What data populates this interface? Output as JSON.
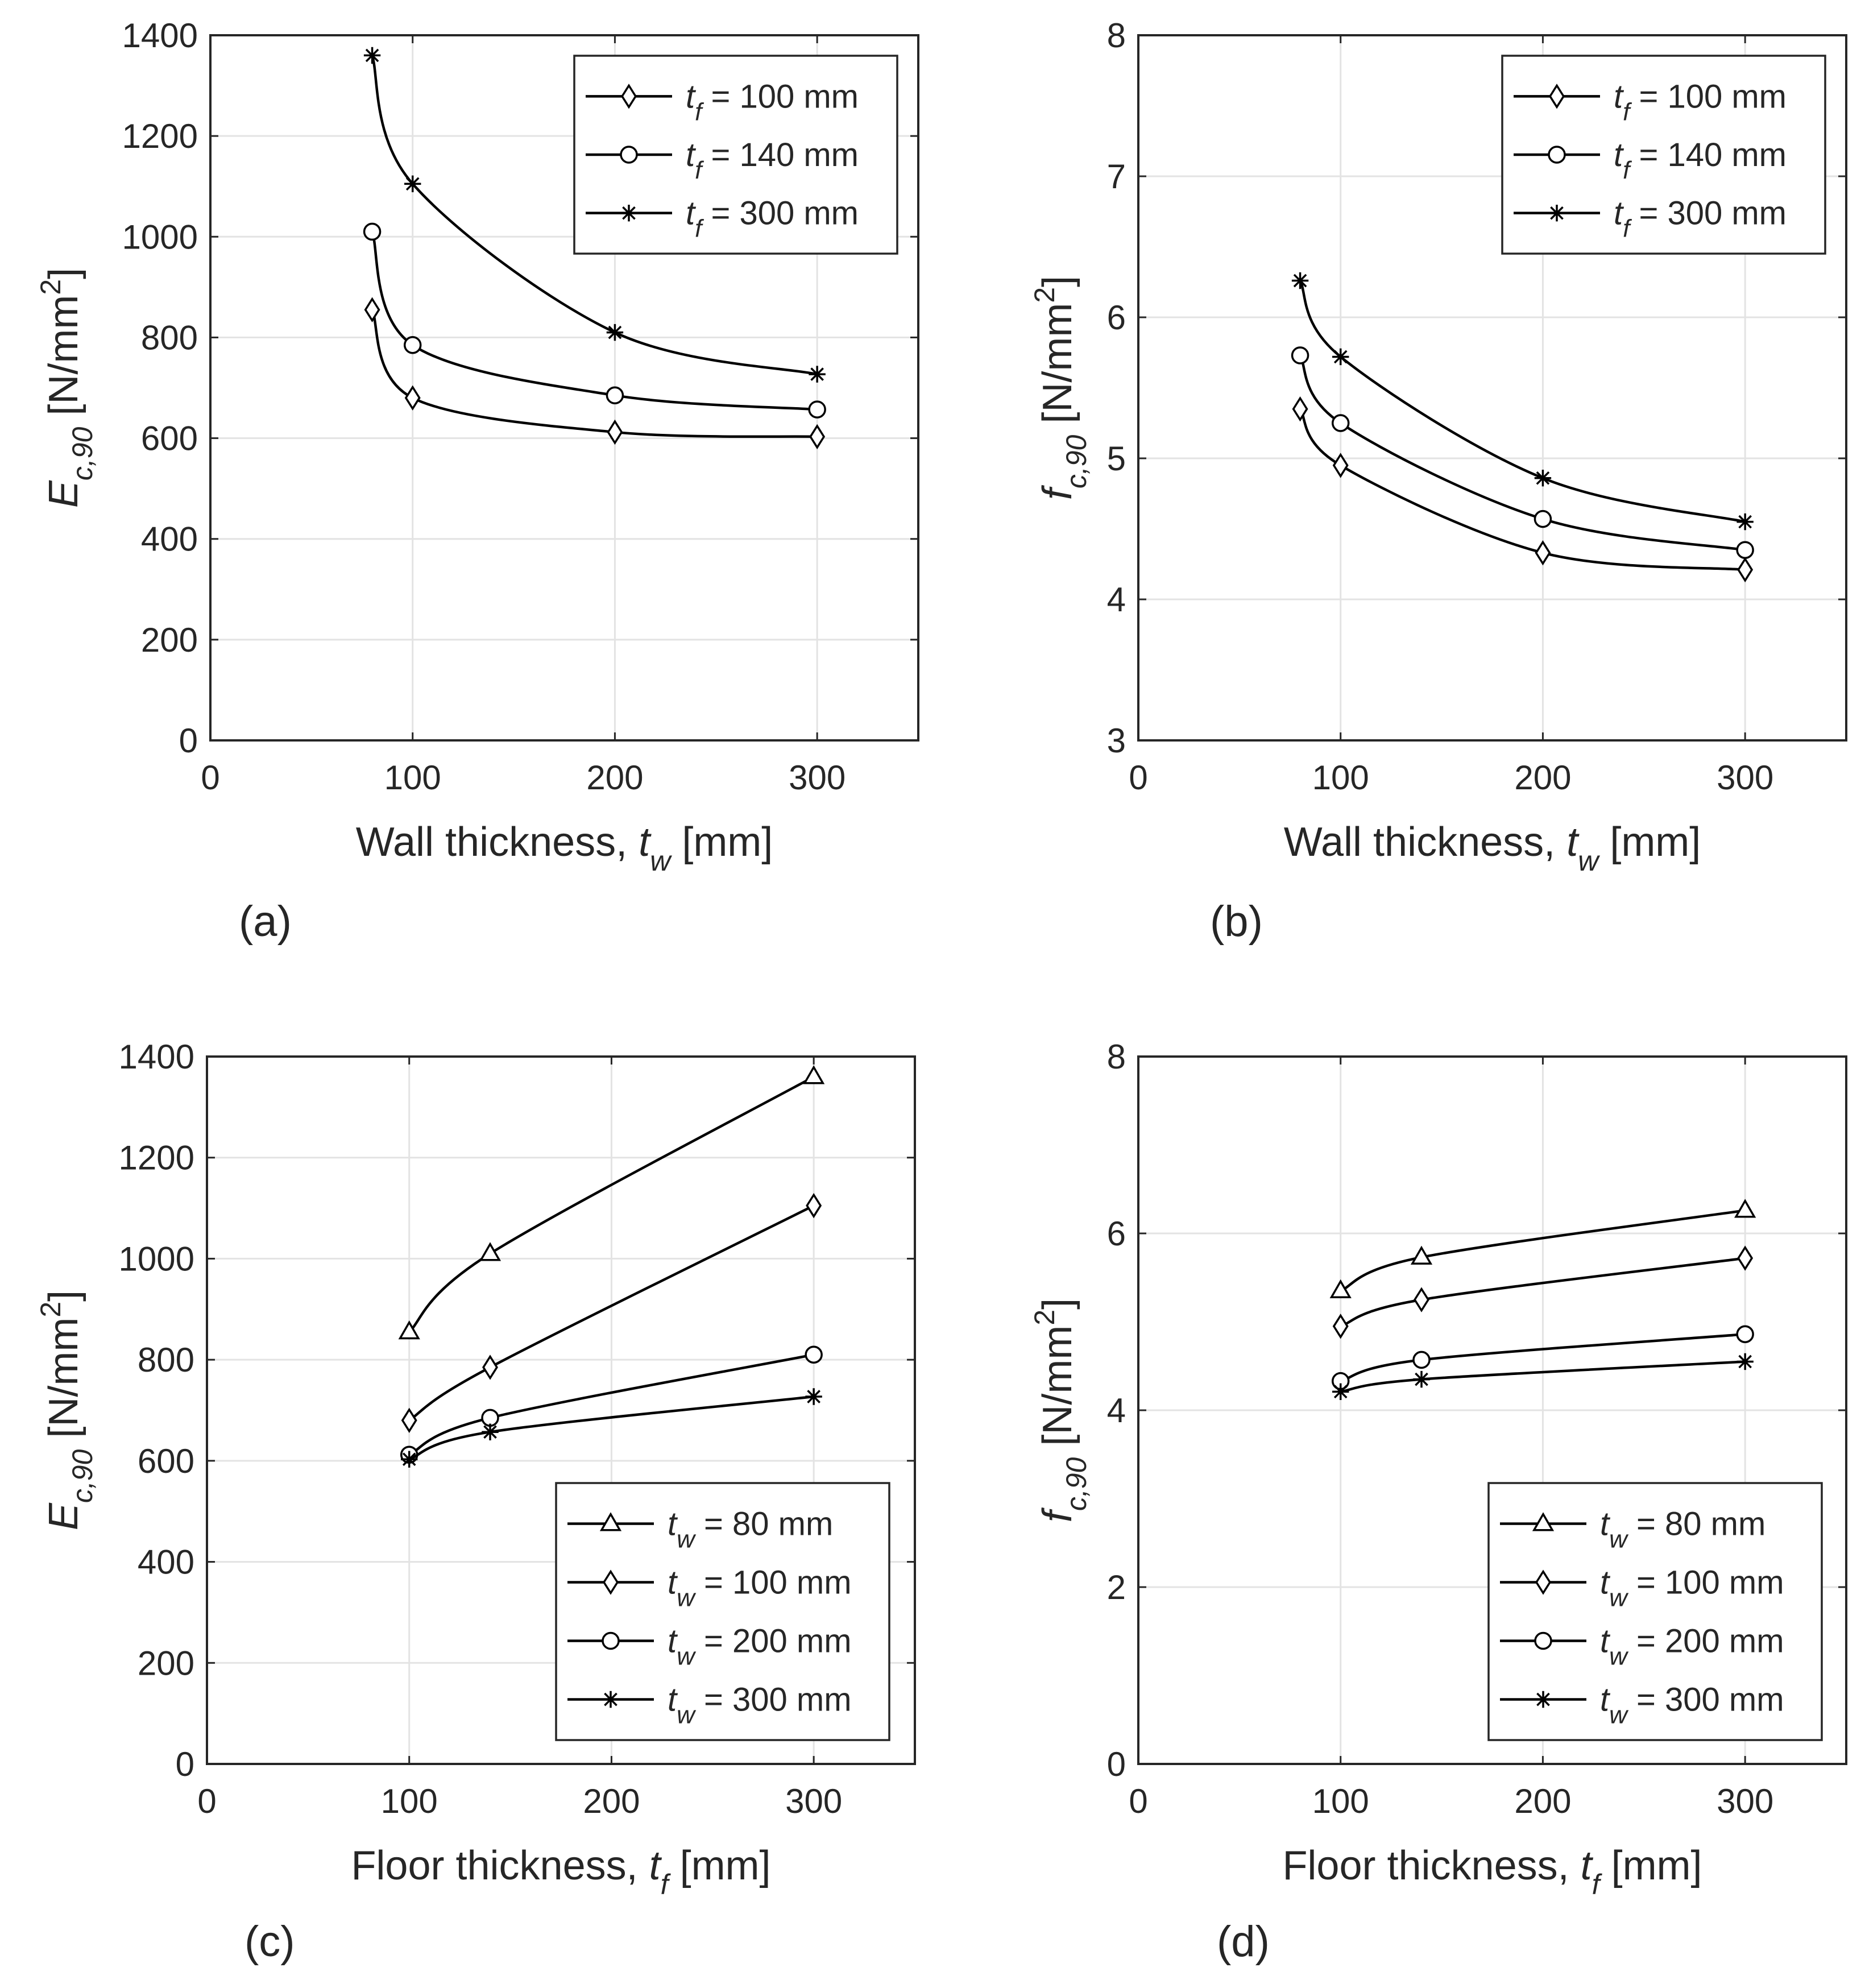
{
  "figure": {
    "panels": [
      {
        "letter": "(a)"
      },
      {
        "letter": "(b)"
      },
      {
        "letter": "(c)"
      },
      {
        "letter": "(d)"
      }
    ]
  },
  "chart_data": [
    {
      "type": "line",
      "panel": "(a)",
      "xlabel": {
        "main": "Wall thickness,",
        "var": "t",
        "sub": "w",
        "unit": "[mm]"
      },
      "ylabel": {
        "var": "E",
        "sub": "c,90",
        "unit": "[N/mm",
        "sup": "2",
        "close": "]"
      },
      "xlim": [
        0,
        350
      ],
      "ylim": [
        0,
        1400
      ],
      "xticks": [
        0,
        100,
        200,
        300
      ],
      "yticks": [
        0,
        200,
        400,
        600,
        800,
        1000,
        1200,
        1400
      ],
      "grid": true,
      "legend_position": "top-right",
      "series": [
        {
          "marker": "diamond",
          "var": "t",
          "sub": "f",
          "label": "= 100 mm",
          "x": [
            80,
            100,
            200,
            300
          ],
          "y": [
            855,
            680,
            612,
            603
          ]
        },
        {
          "marker": "circle",
          "var": "t",
          "sub": "f",
          "label": "= 140 mm",
          "x": [
            80,
            100,
            200,
            300
          ],
          "y": [
            1010,
            785,
            685,
            657
          ]
        },
        {
          "marker": "star",
          "var": "t",
          "sub": "f",
          "label": "= 300 mm",
          "x": [
            80,
            100,
            200,
            300
          ],
          "y": [
            1360,
            1105,
            810,
            727
          ]
        }
      ]
    },
    {
      "type": "line",
      "panel": "(b)",
      "xlabel": {
        "main": "Wall thickness,",
        "var": "t",
        "sub": "w",
        "unit": "[mm]"
      },
      "ylabel": {
        "var": "f",
        "sub": "c,90",
        "unit": "[N/mm",
        "sup": "2",
        "close": "]"
      },
      "xlim": [
        0,
        350
      ],
      "ylim": [
        3,
        8
      ],
      "xticks": [
        0,
        100,
        200,
        300
      ],
      "yticks": [
        3,
        4,
        5,
        6,
        7,
        8
      ],
      "grid": true,
      "legend_position": "top-right",
      "series": [
        {
          "marker": "diamond",
          "var": "t",
          "sub": "f",
          "label": "= 100 mm",
          "x": [
            80,
            100,
            200,
            300
          ],
          "y": [
            5.35,
            4.95,
            4.33,
            4.21
          ]
        },
        {
          "marker": "circle",
          "var": "t",
          "sub": "f",
          "label": "= 140 mm",
          "x": [
            80,
            100,
            200,
            300
          ],
          "y": [
            5.73,
            5.25,
            4.57,
            4.35
          ]
        },
        {
          "marker": "star",
          "var": "t",
          "sub": "f",
          "label": "= 300 mm",
          "x": [
            80,
            100,
            200,
            300
          ],
          "y": [
            6.26,
            5.72,
            4.86,
            4.55
          ]
        }
      ]
    },
    {
      "type": "line",
      "panel": "(c)",
      "xlabel": {
        "main": "Floor thickness,",
        "var": "t",
        "sub": "f",
        "unit": "[mm]"
      },
      "ylabel": {
        "var": "E",
        "sub": "c,90",
        "unit": "[N/mm",
        "sup": "2",
        "close": "]"
      },
      "xlim": [
        0,
        350
      ],
      "ylim": [
        0,
        1400
      ],
      "xticks": [
        0,
        100,
        200,
        300
      ],
      "yticks": [
        0,
        200,
        400,
        600,
        800,
        1000,
        1200,
        1400
      ],
      "grid": true,
      "legend_position": "bottom-right",
      "series": [
        {
          "marker": "triangle",
          "var": "t",
          "sub": "w",
          "label": "= 80 mm",
          "x": [
            100,
            140,
            300
          ],
          "y": [
            855,
            1010,
            1360
          ]
        },
        {
          "marker": "diamond",
          "var": "t",
          "sub": "w",
          "label": "= 100 mm",
          "x": [
            100,
            140,
            300
          ],
          "y": [
            680,
            785,
            1105
          ]
        },
        {
          "marker": "circle",
          "var": "t",
          "sub": "w",
          "label": "= 200 mm",
          "x": [
            100,
            140,
            300
          ],
          "y": [
            612,
            685,
            810
          ]
        },
        {
          "marker": "star",
          "var": "t",
          "sub": "w",
          "label": "= 300 mm",
          "x": [
            100,
            140,
            300
          ],
          "y": [
            603,
            657,
            727
          ]
        }
      ]
    },
    {
      "type": "line",
      "panel": "(d)",
      "xlabel": {
        "main": "Floor thickness,",
        "var": "t",
        "sub": "f",
        "unit": "[mm]"
      },
      "ylabel": {
        "var": "f",
        "sub": "c,90",
        "unit": "[N/mm",
        "sup": "2",
        "close": "]"
      },
      "xlim": [
        0,
        350
      ],
      "ylim": [
        0,
        8
      ],
      "xticks": [
        0,
        100,
        200,
        300
      ],
      "yticks": [
        0,
        2,
        4,
        6,
        8
      ],
      "grid": true,
      "legend_position": "bottom-right",
      "series": [
        {
          "marker": "triangle",
          "var": "t",
          "sub": "w",
          "label": "= 80 mm",
          "x": [
            100,
            140,
            300
          ],
          "y": [
            5.35,
            5.73,
            6.26
          ]
        },
        {
          "marker": "diamond",
          "var": "t",
          "sub": "w",
          "label": "= 100 mm",
          "x": [
            100,
            140,
            300
          ],
          "y": [
            4.95,
            5.25,
            5.72
          ]
        },
        {
          "marker": "circle",
          "var": "t",
          "sub": "w",
          "label": "= 200 mm",
          "x": [
            100,
            140,
            300
          ],
          "y": [
            4.33,
            4.57,
            4.86
          ]
        },
        {
          "marker": "star",
          "var": "t",
          "sub": "w",
          "label": "= 300 mm",
          "x": [
            100,
            140,
            300
          ],
          "y": [
            4.21,
            4.35,
            4.55
          ]
        }
      ]
    }
  ]
}
